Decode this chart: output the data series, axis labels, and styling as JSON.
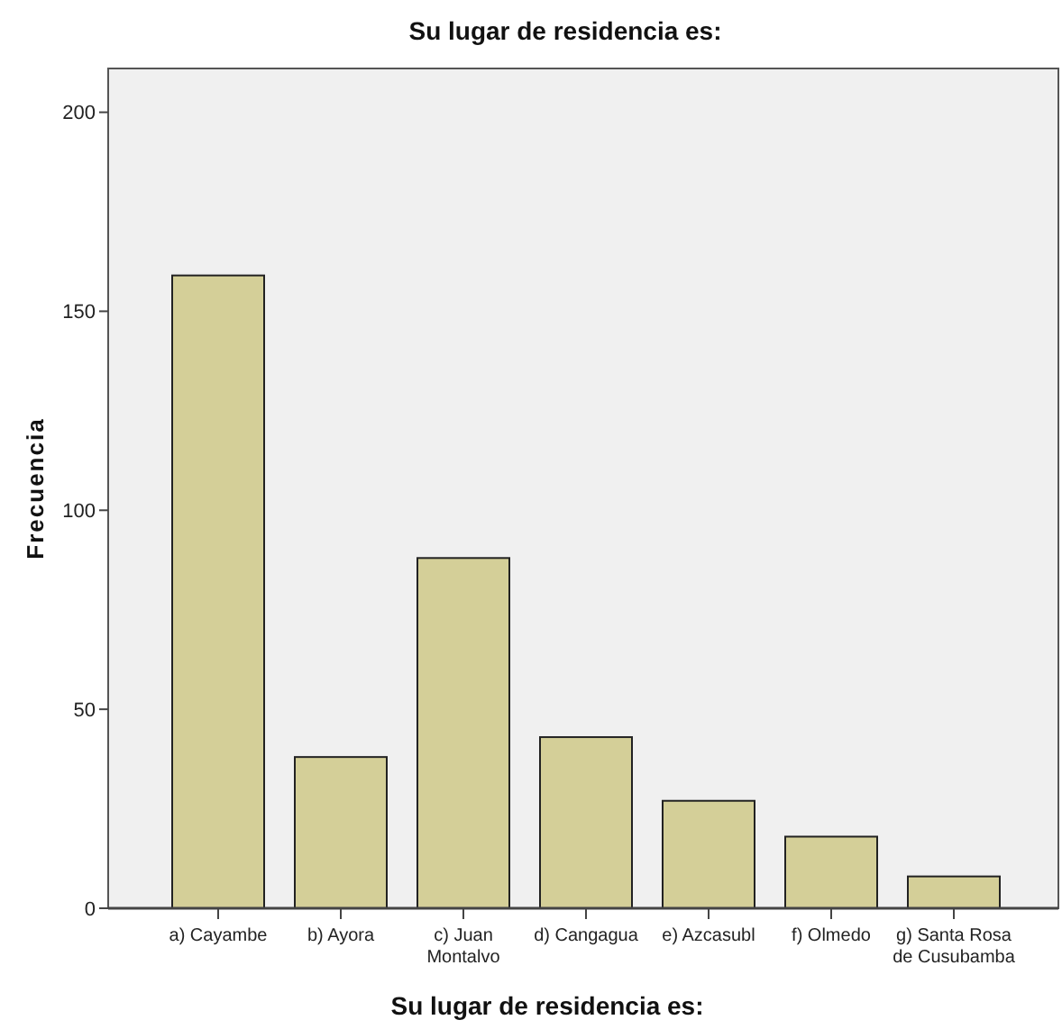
{
  "chart_data": {
    "type": "bar",
    "title": "Su lugar de residencia es:",
    "xlabel": "Su lugar de residencia es:",
    "ylabel": "Frecuencia",
    "categories": [
      "a) Cayambe",
      "b) Ayora",
      "c) Juan Montalvo",
      "d) Cangagua",
      "e) Azcasubl",
      "f) Olmedo",
      "g) Santa Rosa de Cusubamba"
    ],
    "values": [
      159,
      38,
      88,
      43,
      27,
      18,
      8
    ],
    "color": "#d4cf98",
    "ylim": [
      0,
      211
    ],
    "yticks": [
      0,
      50,
      100,
      150,
      200
    ],
    "grid": false
  }
}
